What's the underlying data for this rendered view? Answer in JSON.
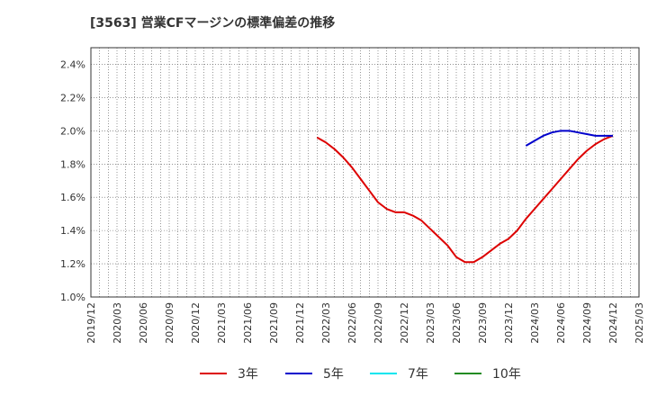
{
  "chart_data": {
    "type": "line",
    "title": "[3563]  営業CFマージンの標準偏差の推移",
    "xlabel": "",
    "ylabel": "",
    "ylim": [
      1.0,
      2.5
    ],
    "y_ticks": [
      "1.0%",
      "1.2%",
      "1.4%",
      "1.6%",
      "1.8%",
      "2.0%",
      "2.2%",
      "2.4%"
    ],
    "y_tick_values": [
      1.0,
      1.2,
      1.4,
      1.6,
      1.8,
      2.0,
      2.2,
      2.4
    ],
    "x_ticks": [
      "2019/12",
      "2020/03",
      "2020/06",
      "2020/09",
      "2020/12",
      "2021/03",
      "2021/06",
      "2021/09",
      "2021/12",
      "2022/03",
      "2022/06",
      "2022/09",
      "2022/12",
      "2023/03",
      "2023/06",
      "2023/09",
      "2023/12",
      "2024/03",
      "2024/06",
      "2024/09",
      "2024/12",
      "2025/03"
    ],
    "grid": true,
    "legend_position": "bottom",
    "series": [
      {
        "name": "3年",
        "color": "#dd0000",
        "points": [
          [
            "2022/02",
            1.96
          ],
          [
            "2022/03",
            1.93
          ],
          [
            "2022/04",
            1.89
          ],
          [
            "2022/05",
            1.84
          ],
          [
            "2022/06",
            1.78
          ],
          [
            "2022/07",
            1.71
          ],
          [
            "2022/08",
            1.64
          ],
          [
            "2022/09",
            1.57
          ],
          [
            "2022/10",
            1.53
          ],
          [
            "2022/11",
            1.51
          ],
          [
            "2022/12",
            1.51
          ],
          [
            "2023/01",
            1.49
          ],
          [
            "2023/02",
            1.46
          ],
          [
            "2023/03",
            1.41
          ],
          [
            "2023/04",
            1.36
          ],
          [
            "2023/05",
            1.31
          ],
          [
            "2023/06",
            1.24
          ],
          [
            "2023/07",
            1.21
          ],
          [
            "2023/08",
            1.21
          ],
          [
            "2023/09",
            1.24
          ],
          [
            "2023/10",
            1.28
          ],
          [
            "2023/11",
            1.32
          ],
          [
            "2023/12",
            1.35
          ],
          [
            "2024/01",
            1.4
          ],
          [
            "2024/02",
            1.47
          ],
          [
            "2024/03",
            1.53
          ],
          [
            "2024/04",
            1.59
          ],
          [
            "2024/05",
            1.65
          ],
          [
            "2024/06",
            1.71
          ],
          [
            "2024/07",
            1.77
          ],
          [
            "2024/08",
            1.83
          ],
          [
            "2024/09",
            1.88
          ],
          [
            "2024/10",
            1.92
          ],
          [
            "2024/11",
            1.95
          ],
          [
            "2024/12",
            1.97
          ]
        ]
      },
      {
        "name": "5年",
        "color": "#0000cc",
        "points": [
          [
            "2024/02",
            1.91
          ],
          [
            "2024/03",
            1.94
          ],
          [
            "2024/04",
            1.97
          ],
          [
            "2024/05",
            1.99
          ],
          [
            "2024/06",
            2.0
          ],
          [
            "2024/07",
            2.0
          ],
          [
            "2024/08",
            1.99
          ],
          [
            "2024/09",
            1.98
          ],
          [
            "2024/10",
            1.97
          ],
          [
            "2024/11",
            1.97
          ],
          [
            "2024/12",
            1.97
          ]
        ]
      },
      {
        "name": "7年",
        "color": "#00e5ee",
        "points": []
      },
      {
        "name": "10年",
        "color": "#228b22",
        "points": []
      }
    ]
  }
}
